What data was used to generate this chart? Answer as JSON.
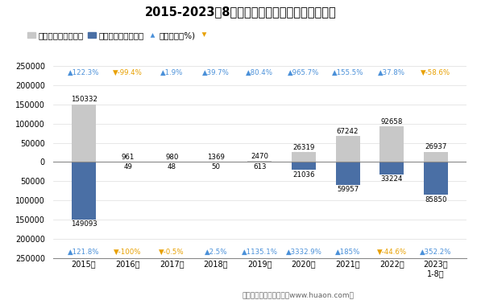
{
  "title": "2015-2023年8月武汉经开综合保税区进、出口额",
  "years": [
    "2015年",
    "2016年",
    "2017年",
    "2018年",
    "2019年",
    "2020年",
    "2021年",
    "2022年",
    "2023年\n1-8月"
  ],
  "export_values": [
    150332,
    961,
    980,
    1369,
    2470,
    26319,
    67242,
    92658,
    26937
  ],
  "import_values": [
    -149093,
    -49,
    -48,
    -50,
    -613,
    -21036,
    -59957,
    -33224,
    -85850
  ],
  "export_yoy": [
    "▲122.3%",
    "▼-99.4%",
    "▲1.9%",
    "▲39.7%",
    "▲80.4%",
    "▲965.7%",
    "▲155.5%",
    "▲37.8%",
    "▼-58.6%"
  ],
  "import_yoy": [
    "▲121.8%",
    "▼-100%",
    "▼-0.5%",
    "▲2.5%",
    "▲1135.1%",
    "▲3332.9%",
    "▲185%",
    "▼-44.6%",
    "▲352.2%"
  ],
  "export_yoy_up": [
    true,
    false,
    true,
    true,
    true,
    true,
    true,
    true,
    false
  ],
  "import_yoy_up": [
    true,
    false,
    false,
    true,
    true,
    true,
    true,
    false,
    true
  ],
  "export_color": "#C8C8C8",
  "import_color": "#4A6FA5",
  "up_color": "#4A90D9",
  "down_color": "#E8A000",
  "ylim": [
    -250000,
    250000
  ],
  "yticks": [
    -250000,
    -200000,
    -150000,
    -100000,
    -50000,
    0,
    50000,
    100000,
    150000,
    200000,
    250000
  ],
  "legend_labels": [
    "出口总额（万美元）",
    "进口总额（万美元）",
    "同比增速（%)"
  ],
  "footer": "制图：华经产业研究院（www.huaon.com）"
}
